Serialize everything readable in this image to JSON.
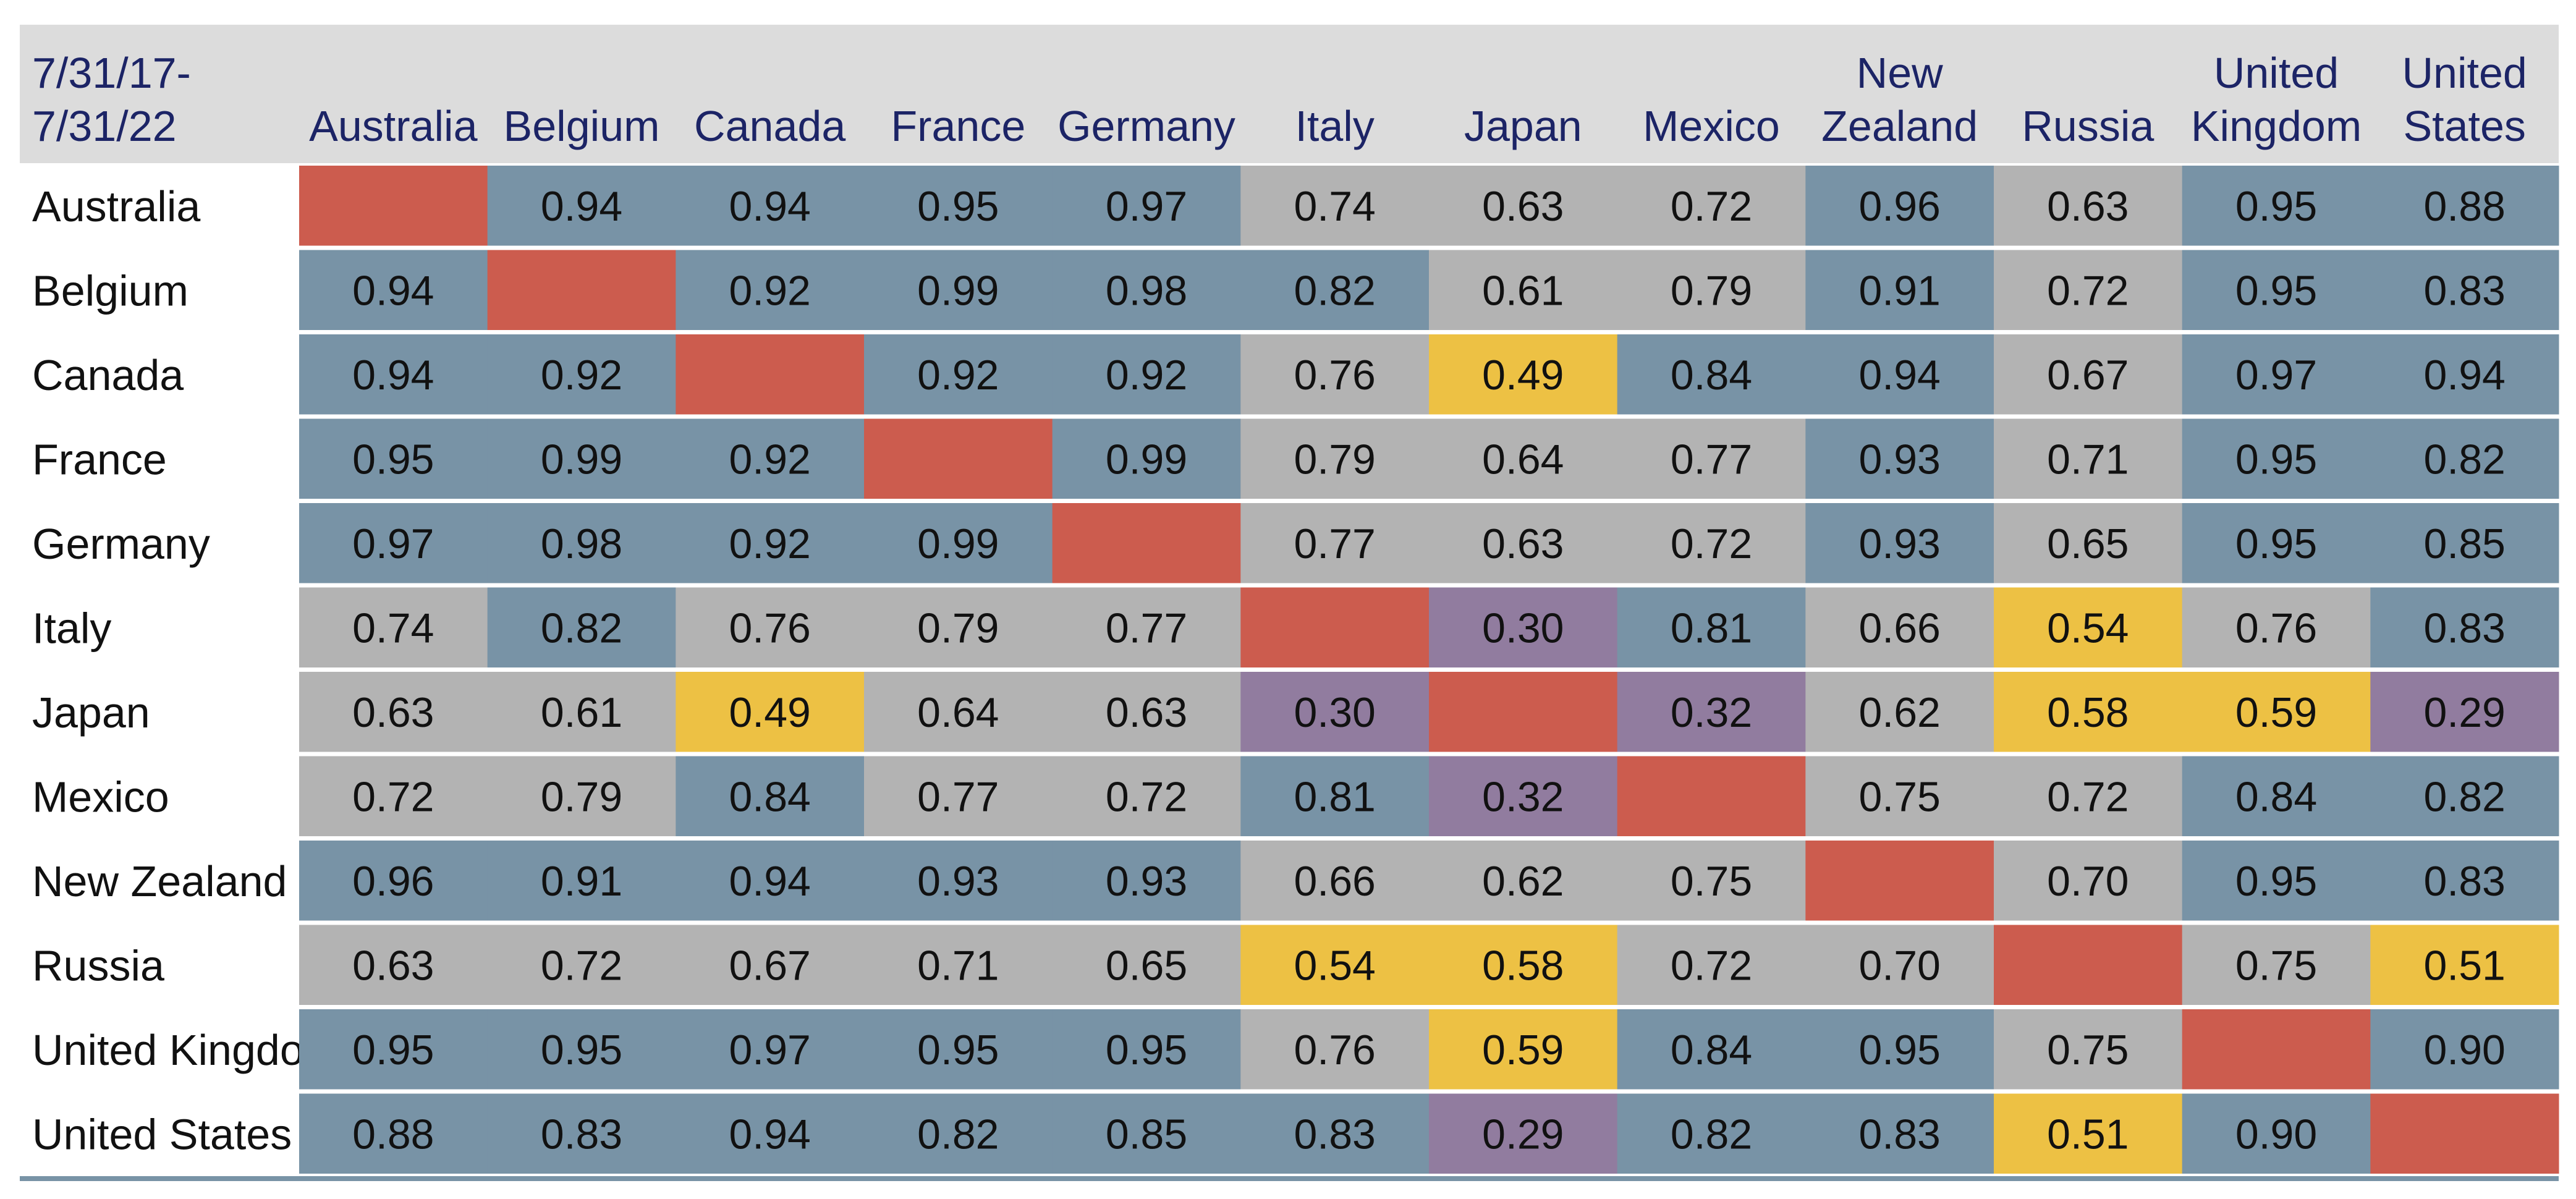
{
  "chart_data": {
    "type": "heatmap",
    "title": "",
    "period_label": "7/31/17-\n7/31/22",
    "rows": [
      "Australia",
      "Belgium",
      "Canada",
      "France",
      "Germany",
      "Italy",
      "Japan",
      "Mexico",
      "New Zealand",
      "Russia",
      "United Kingdom",
      "United States"
    ],
    "columns": [
      "Australia",
      "Belgium",
      "Canada",
      "France",
      "Germany",
      "Italy",
      "Japan",
      "Mexico",
      "New\nZealand",
      "Russia",
      "United\nKingdom",
      "United\nStates"
    ],
    "values": [
      [
        null,
        0.94,
        0.94,
        0.95,
        0.97,
        0.74,
        0.63,
        0.72,
        0.96,
        0.63,
        0.95,
        0.88
      ],
      [
        0.94,
        null,
        0.92,
        0.99,
        0.98,
        0.82,
        0.61,
        0.79,
        0.91,
        0.72,
        0.95,
        0.83
      ],
      [
        0.94,
        0.92,
        null,
        0.92,
        0.92,
        0.76,
        0.49,
        0.84,
        0.94,
        0.67,
        0.97,
        0.94
      ],
      [
        0.95,
        0.99,
        0.92,
        null,
        0.99,
        0.79,
        0.64,
        0.77,
        0.93,
        0.71,
        0.95,
        0.82
      ],
      [
        0.97,
        0.98,
        0.92,
        0.99,
        null,
        0.77,
        0.63,
        0.72,
        0.93,
        0.65,
        0.95,
        0.85
      ],
      [
        0.74,
        0.82,
        0.76,
        0.79,
        0.77,
        null,
        0.3,
        0.81,
        0.66,
        0.54,
        0.76,
        0.83
      ],
      [
        0.63,
        0.61,
        0.49,
        0.64,
        0.63,
        0.3,
        null,
        0.32,
        0.62,
        0.58,
        0.59,
        0.29
      ],
      [
        0.72,
        0.79,
        0.84,
        0.77,
        0.72,
        0.81,
        0.32,
        null,
        0.75,
        0.72,
        0.84,
        0.82
      ],
      [
        0.96,
        0.91,
        0.94,
        0.93,
        0.93,
        0.66,
        0.62,
        0.75,
        null,
        0.7,
        0.95,
        0.83
      ],
      [
        0.63,
        0.72,
        0.67,
        0.71,
        0.65,
        0.54,
        0.58,
        0.72,
        0.7,
        null,
        0.75,
        0.51
      ],
      [
        0.95,
        0.95,
        0.97,
        0.95,
        0.95,
        0.76,
        0.59,
        0.84,
        0.95,
        0.75,
        null,
        0.9
      ],
      [
        0.88,
        0.83,
        0.94,
        0.82,
        0.85,
        0.83,
        0.29,
        0.82,
        0.83,
        0.51,
        0.9,
        null
      ]
    ],
    "legend": "none",
    "grid": false,
    "colors": {
      "header_background": "#dcdcdc",
      "header_text": "#1c2466",
      "row_label_text": "#111111",
      "value_text": "#111111",
      "diagonal": "#cc5c4e",
      "high_correlation": "#7893a6",
      "medium_correlation": "#b3b3b3",
      "low_correlation": "#edc144",
      "very_low_correlation": "#917c9f",
      "cell_border": "#ffffff",
      "bottom_rule": "#7893a6"
    }
  }
}
